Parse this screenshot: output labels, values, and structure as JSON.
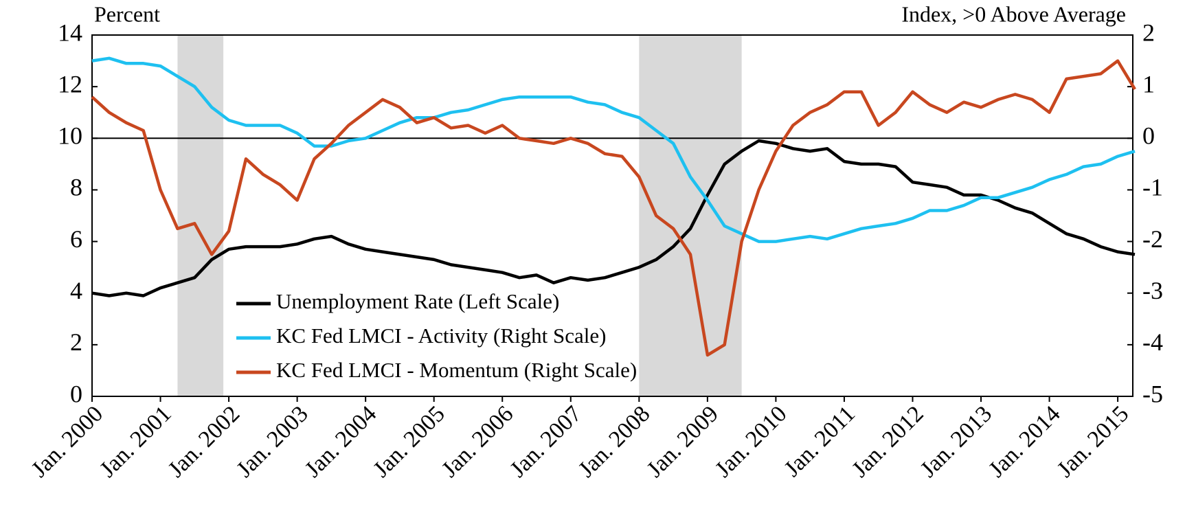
{
  "chart_data": {
    "type": "line",
    "y_label": "Percent",
    "y2_label": "Index, >0 Above Average",
    "x": [
      2000,
      2000.25,
      2000.5,
      2000.75,
      2001,
      2001.25,
      2001.5,
      2001.75,
      2002,
      2002.25,
      2002.5,
      2002.75,
      2003,
      2003.25,
      2003.5,
      2003.75,
      2004,
      2004.25,
      2004.5,
      2004.75,
      2005,
      2005.25,
      2005.5,
      2005.75,
      2006,
      2006.25,
      2006.5,
      2006.75,
      2007,
      2007.25,
      2007.5,
      2007.75,
      2008,
      2008.25,
      2008.5,
      2008.75,
      2009,
      2009.25,
      2009.5,
      2009.75,
      2010,
      2010.25,
      2010.5,
      2010.75,
      2011,
      2011.25,
      2011.5,
      2011.75,
      2012,
      2012.25,
      2012.5,
      2012.75,
      2013,
      2013.25,
      2013.5,
      2013.75,
      2014,
      2014.25,
      2014.5,
      2014.75,
      2015,
      2015.25
    ],
    "xlim": [
      2000,
      2015.22
    ],
    "xticks": [
      {
        "value": 2000,
        "label": "Jan. 2000"
      },
      {
        "value": 2001,
        "label": "Jan. 2001"
      },
      {
        "value": 2002,
        "label": "Jan. 2002"
      },
      {
        "value": 2003,
        "label": "Jan. 2003"
      },
      {
        "value": 2004,
        "label": "Jan. 2004"
      },
      {
        "value": 2005,
        "label": "Jan. 2005"
      },
      {
        "value": 2006,
        "label": "Jan. 2006"
      },
      {
        "value": 2007,
        "label": "Jan. 2007"
      },
      {
        "value": 2008,
        "label": "Jan. 2008"
      },
      {
        "value": 2009,
        "label": "Jan. 2009"
      },
      {
        "value": 2010,
        "label": "Jan. 2010"
      },
      {
        "value": 2011,
        "label": "Jan. 2011"
      },
      {
        "value": 2012,
        "label": "Jan. 2012"
      },
      {
        "value": 2013,
        "label": "Jan. 2013"
      },
      {
        "value": 2014,
        "label": "Jan. 2014"
      },
      {
        "value": 2015,
        "label": "Jan. 2015"
      }
    ],
    "ylim": [
      0,
      14
    ],
    "yticks": [
      0,
      2,
      4,
      6,
      8,
      10,
      12,
      14
    ],
    "y2lim": [
      -5,
      2
    ],
    "y2ticks": [
      -5,
      -4,
      -3,
      -2,
      -1,
      0,
      1,
      2
    ],
    "shaded_periods": [
      [
        2001.25,
        2001.92
      ],
      [
        2008.0,
        2009.5
      ]
    ],
    "reference_line": {
      "axis": "y2",
      "value": 0
    },
    "legend": "lower center",
    "series": [
      {
        "name": "Unemployment Rate (Left Scale)",
        "color": "#000000",
        "values": [
          4.0,
          3.9,
          4.0,
          3.9,
          4.2,
          4.4,
          4.6,
          5.3,
          5.7,
          5.8,
          5.8,
          5.8,
          5.9,
          6.1,
          6.2,
          5.9,
          5.7,
          5.6,
          5.5,
          5.4,
          5.3,
          5.1,
          5.0,
          4.9,
          4.8,
          4.6,
          4.7,
          4.4,
          4.6,
          4.5,
          4.6,
          4.8,
          5.0,
          5.3,
          5.8,
          6.5,
          7.8,
          9.0,
          9.5,
          9.9,
          9.8,
          9.6,
          9.5,
          9.6,
          9.1,
          9.0,
          9.0,
          8.9,
          8.3,
          8.2,
          8.1,
          7.8,
          7.8,
          7.6,
          7.3,
          7.1,
          6.7,
          6.3,
          6.1,
          5.8,
          5.6,
          5.5
        ]
      },
      {
        "name": "KC Fed LMCI - Activity (Right Scale)",
        "color": "#1ec0f0",
        "axis": "y2",
        "values": [
          1.5,
          1.55,
          1.45,
          1.45,
          1.4,
          1.2,
          1.0,
          0.6,
          0.35,
          0.25,
          0.25,
          0.25,
          0.1,
          -0.15,
          -0.15,
          -0.05,
          0,
          0.15,
          0.3,
          0.4,
          0.4,
          0.5,
          0.55,
          0.65,
          0.75,
          0.8,
          0.8,
          0.8,
          0.8,
          0.7,
          0.65,
          0.5,
          0.4,
          0.15,
          -0.1,
          -0.75,
          -1.2,
          -1.7,
          -1.85,
          -2.0,
          -2.0,
          -1.95,
          -1.9,
          -1.95,
          -1.85,
          -1.75,
          -1.7,
          -1.65,
          -1.55,
          -1.4,
          -1.4,
          -1.3,
          -1.15,
          -1.15,
          -1.05,
          -0.95,
          -0.8,
          -0.7,
          -0.55,
          -0.5,
          -0.35,
          -0.25
        ]
      },
      {
        "name": "KC Fed LMCI - Momentum (Right Scale)",
        "color": "#c8471f",
        "axis": "y2",
        "values": [
          0.8,
          0.5,
          0.3,
          0.15,
          -1.0,
          -1.75,
          -1.65,
          -2.25,
          -1.8,
          -0.4,
          -0.7,
          -0.9,
          -1.2,
          -0.4,
          -0.1,
          0.25,
          0.5,
          0.75,
          0.6,
          0.3,
          0.4,
          0.2,
          0.25,
          0.1,
          0.25,
          0,
          -0.05,
          -0.1,
          0,
          -0.1,
          -0.3,
          -0.35,
          -0.75,
          -1.5,
          -1.75,
          -2.25,
          -4.2,
          -4.0,
          -2.0,
          -1.0,
          -0.25,
          0.25,
          0.5,
          0.65,
          0.9,
          0.9,
          0.25,
          0.5,
          0.9,
          0.65,
          0.5,
          0.7,
          0.6,
          0.75,
          0.85,
          0.75,
          0.5,
          1.15,
          1.2,
          1.25,
          1.5,
          0.95
        ]
      }
    ]
  }
}
